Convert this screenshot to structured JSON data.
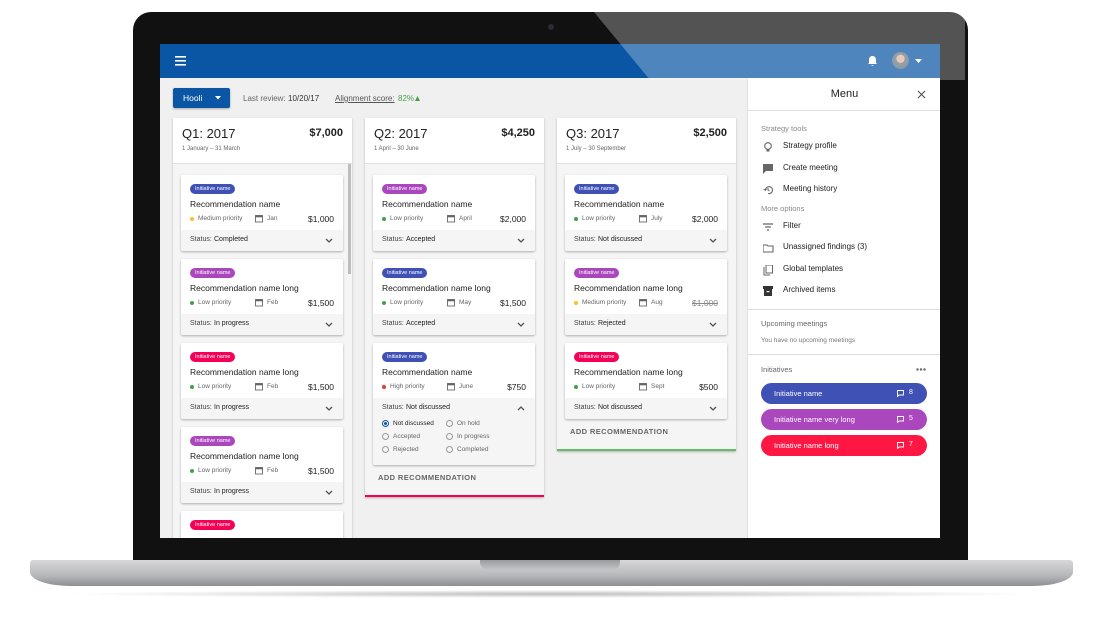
{
  "toolbar": {
    "project": "Hooli",
    "last_review_label": "Last review:",
    "last_review": "10/20/17",
    "alignment_label": "Alignment score:",
    "alignment_score": "82%"
  },
  "columns": [
    {
      "title": "Q1: 2017",
      "total": "$7,000",
      "dates": "1 January – 31 March",
      "accent_color": null,
      "add_label": null,
      "cards": [
        {
          "initiative": "Initiative name",
          "initiative_color": "#3f51b5",
          "name": "Recommendation name",
          "priority": "Medium priority",
          "priority_color": "#fbc02d",
          "month": "Jan",
          "amount": "$1,000",
          "status_label": "Status:",
          "status": "Completed"
        },
        {
          "initiative": "Initiative name",
          "initiative_color": "#ab47bc",
          "name": "Recommendation name long",
          "priority": "Low priority",
          "priority_color": "#43a047",
          "month": "Feb",
          "amount": "$1,500",
          "status_label": "Status:",
          "status": "In progress"
        },
        {
          "initiative": "Initiative name",
          "initiative_color": "#f50057",
          "name": "Recommendation name long",
          "priority": "Low priority",
          "priority_color": "#43a047",
          "month": "Feb",
          "amount": "$1,500",
          "status_label": "Status:",
          "status": "In progress"
        },
        {
          "initiative": "Initiative name",
          "initiative_color": "#ab47bc",
          "name": "Recommendation name long",
          "priority": "Low priority",
          "priority_color": "#43a047",
          "month": "Feb",
          "amount": "$1,500",
          "status_label": "Status:",
          "status": "In progress"
        },
        {
          "initiative": "Initiative name",
          "initiative_color": "#f50057"
        }
      ]
    },
    {
      "title": "Q2: 2017",
      "total": "$4,250",
      "dates": "1 April – 30 June",
      "accent_color": "#f50057",
      "add_label": "ADD RECOMMENDATION",
      "cards": [
        {
          "initiative": "Initiative name",
          "initiative_color": "#ab47bc",
          "name": "Recommendation name",
          "priority": "Low priority",
          "priority_color": "#43a047",
          "month": "April",
          "amount": "$2,000",
          "status_label": "Status:",
          "status": "Accepted"
        },
        {
          "initiative": "Initiative name",
          "initiative_color": "#3f51b5",
          "name": "Recommendation name long",
          "priority": "Low priority",
          "priority_color": "#43a047",
          "month": "May",
          "amount": "$1,500",
          "status_label": "Status:",
          "status": "Accepted"
        },
        {
          "initiative": "Initiative name",
          "initiative_color": "#3f51b5",
          "name": "Recommendation name",
          "priority": "High priority",
          "priority_color": "#e53935",
          "month": "June",
          "amount": "$750",
          "status_label": "Status:",
          "status": "Not discussed",
          "options": [
            {
              "label": "Not discussed",
              "checked": true
            },
            {
              "label": "On hold",
              "checked": false
            },
            {
              "label": "Accepted",
              "checked": false
            },
            {
              "label": "In progress",
              "checked": false
            },
            {
              "label": "Rejected",
              "checked": false
            },
            {
              "label": "Completed",
              "checked": false
            }
          ]
        }
      ]
    },
    {
      "title": "Q3: 2017",
      "total": "$2,500",
      "dates": "1 July – 30 September",
      "accent_color": "#66bb6a",
      "add_label": "ADD RECOMMENDATION",
      "cards": [
        {
          "initiative": "Initiative name",
          "initiative_color": "#3f51b5",
          "name": "Recommendation name",
          "priority": "Low priority",
          "priority_color": "#43a047",
          "month": "July",
          "amount": "$2,000",
          "status_label": "Status:",
          "status": "Not discussed"
        },
        {
          "initiative": "Initiative name",
          "initiative_color": "#ab47bc",
          "name": "Recommendation name long",
          "priority": "Medium priority",
          "priority_color": "#fbc02d",
          "month": "Aug",
          "amount": "$1,000",
          "strikethrough": true,
          "status_label": "Status:",
          "status": "Rejected"
        },
        {
          "initiative": "Initiative name",
          "initiative_color": "#f50057",
          "name": "Recommendation name long",
          "priority": "Low priority",
          "priority_color": "#43a047",
          "month": "Sept",
          "amount": "$500",
          "status_label": "Status:",
          "status": "Not discussed"
        }
      ]
    }
  ],
  "sidebar": {
    "title": "Menu",
    "sections": [
      {
        "heading": "Strategy tools",
        "items": [
          "Strategy profile",
          "Create meeting",
          "Meeting history"
        ]
      },
      {
        "heading": "More options",
        "items": [
          "Filter",
          "Unassigned findings (3)",
          "Global templates",
          "Archived items"
        ]
      }
    ],
    "meetings_heading": "Upcoming meetings",
    "meetings_empty": "You have no upcoming meetings",
    "initiatives_heading": "Initiatives",
    "initiatives": [
      {
        "name": "Initiative name",
        "count": 8,
        "color": "#3f51b5"
      },
      {
        "name": "Initiative name very long",
        "count": 5,
        "color": "#ab47bc"
      },
      {
        "name": "Initiative name long",
        "count": 7,
        "color": "#ff1744"
      }
    ]
  }
}
